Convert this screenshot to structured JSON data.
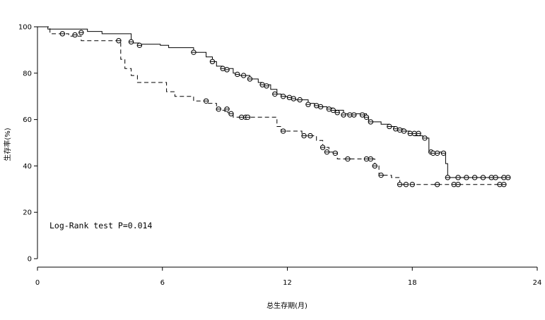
{
  "chart_data": {
    "type": "line",
    "subtype": "kaplan-meier survival curve",
    "xlabel": "总生存期(月)",
    "ylabel": "生存率(%)",
    "xlim": [
      0,
      24
    ],
    "ylim": [
      0,
      100
    ],
    "xticks": [
      "0",
      "6",
      "12",
      "18",
      "24"
    ],
    "yticks": [
      "0",
      "20",
      "40",
      "60",
      "80",
      "100"
    ],
    "grid": false,
    "legend": "none",
    "annotation": "Log-Rank test P=0.014",
    "series": [
      {
        "line_style": "solid",
        "color": "#000000",
        "steps": [
          [
            0,
            100
          ],
          [
            0.5,
            99
          ],
          [
            2.4,
            98
          ],
          [
            3.1,
            97
          ],
          [
            4.5,
            93
          ],
          [
            4.9,
            92.5
          ],
          [
            5.9,
            92
          ],
          [
            6.3,
            91
          ],
          [
            7.5,
            89
          ],
          [
            8.1,
            87
          ],
          [
            8.4,
            85
          ],
          [
            8.6,
            83
          ],
          [
            8.9,
            82
          ],
          [
            9.4,
            80
          ],
          [
            9.6,
            79
          ],
          [
            10.2,
            77.5
          ],
          [
            10.6,
            76
          ],
          [
            10.8,
            75
          ],
          [
            11.2,
            73
          ],
          [
            11.5,
            71
          ],
          [
            11.7,
            70
          ],
          [
            12.1,
            69
          ],
          [
            12.3,
            68.5
          ],
          [
            13.0,
            67
          ],
          [
            13.3,
            66
          ],
          [
            13.6,
            65.5
          ],
          [
            13.9,
            65
          ],
          [
            14.2,
            64
          ],
          [
            14.7,
            62.5
          ],
          [
            15.8,
            61
          ],
          [
            15.9,
            59
          ],
          [
            16.5,
            58
          ],
          [
            16.9,
            57
          ],
          [
            17.2,
            56
          ],
          [
            17.6,
            55
          ],
          [
            17.9,
            54
          ],
          [
            18.1,
            53
          ],
          [
            18.5,
            52
          ],
          [
            18.8,
            46
          ],
          [
            19.4,
            46
          ],
          [
            19.6,
            41
          ],
          [
            19.7,
            35
          ],
          [
            22.5,
            35
          ]
        ],
        "censored": [
          [
            7.5,
            89
          ],
          [
            8.4,
            85
          ],
          [
            8.9,
            82
          ],
          [
            9.1,
            81.5
          ],
          [
            9.6,
            79.5
          ],
          [
            9.9,
            79
          ],
          [
            10.2,
            77.5
          ],
          [
            10.8,
            75
          ],
          [
            11.0,
            74.5
          ],
          [
            11.4,
            71
          ],
          [
            11.8,
            70
          ],
          [
            12.1,
            69.5
          ],
          [
            12.3,
            69
          ],
          [
            12.6,
            68.5
          ],
          [
            13.0,
            66.5
          ],
          [
            13.4,
            66
          ],
          [
            13.6,
            65.5
          ],
          [
            14.0,
            64.5
          ],
          [
            14.2,
            64
          ],
          [
            14.4,
            63
          ],
          [
            14.7,
            62
          ],
          [
            15.0,
            62
          ],
          [
            15.2,
            62
          ],
          [
            15.6,
            62
          ],
          [
            15.8,
            61
          ],
          [
            16.0,
            59
          ],
          [
            16.9,
            57
          ],
          [
            17.2,
            56
          ],
          [
            17.4,
            55.5
          ],
          [
            17.6,
            55
          ],
          [
            17.9,
            54
          ],
          [
            18.1,
            54
          ],
          [
            18.3,
            54
          ],
          [
            18.6,
            52
          ],
          [
            18.9,
            46
          ],
          [
            19.0,
            45.5
          ],
          [
            19.2,
            45.5
          ],
          [
            19.5,
            45.5
          ],
          [
            19.7,
            35
          ],
          [
            20.2,
            35
          ],
          [
            20.6,
            35
          ],
          [
            21.0,
            35
          ],
          [
            21.4,
            35
          ],
          [
            21.8,
            35
          ],
          [
            22.0,
            35
          ],
          [
            22.4,
            35
          ],
          [
            22.6,
            35
          ]
        ]
      },
      {
        "line_style": "dashed",
        "color": "#000000",
        "steps": [
          [
            0,
            100
          ],
          [
            0.6,
            97
          ],
          [
            1.5,
            96
          ],
          [
            2.1,
            94
          ],
          [
            3.8,
            94
          ],
          [
            4.0,
            86
          ],
          [
            4.2,
            82
          ],
          [
            4.5,
            79
          ],
          [
            4.8,
            76
          ],
          [
            6.0,
            76
          ],
          [
            6.2,
            72
          ],
          [
            6.6,
            70
          ],
          [
            7.5,
            68
          ],
          [
            8.2,
            67
          ],
          [
            8.6,
            64
          ],
          [
            9.0,
            63
          ],
          [
            9.4,
            61
          ],
          [
            11.5,
            57
          ],
          [
            11.7,
            55
          ],
          [
            12.7,
            53
          ],
          [
            13.4,
            51
          ],
          [
            13.7,
            48
          ],
          [
            14.0,
            46
          ],
          [
            14.4,
            43
          ],
          [
            16.0,
            43
          ],
          [
            16.2,
            40
          ],
          [
            16.4,
            36
          ],
          [
            17.0,
            35
          ],
          [
            17.4,
            32
          ],
          [
            22.5,
            32
          ]
        ],
        "censored": [
          [
            1.2,
            97
          ],
          [
            1.8,
            96.5
          ],
          [
            2.1,
            97.5
          ],
          [
            3.9,
            94
          ],
          [
            4.5,
            93.5
          ],
          [
            4.9,
            92
          ],
          [
            8.1,
            68
          ],
          [
            8.7,
            64.5
          ],
          [
            9.1,
            64.5
          ],
          [
            9.3,
            62.5
          ],
          [
            9.8,
            61
          ],
          [
            10.0,
            61
          ],
          [
            10.1,
            61
          ],
          [
            11.8,
            55
          ],
          [
            12.8,
            53
          ],
          [
            13.1,
            53
          ],
          [
            13.7,
            48
          ],
          [
            13.9,
            46
          ],
          [
            14.3,
            45.5
          ],
          [
            14.9,
            43
          ],
          [
            15.8,
            43
          ],
          [
            16.0,
            43
          ],
          [
            16.2,
            40
          ],
          [
            16.5,
            36
          ],
          [
            17.4,
            32
          ],
          [
            17.7,
            32
          ],
          [
            18.0,
            32
          ],
          [
            19.2,
            32
          ],
          [
            20.0,
            32
          ],
          [
            20.2,
            32
          ],
          [
            22.2,
            32
          ],
          [
            22.4,
            32
          ]
        ]
      }
    ]
  }
}
